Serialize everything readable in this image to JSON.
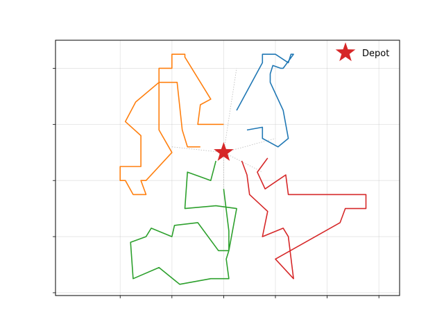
{
  "chart_data": {
    "type": "line",
    "title": "",
    "xlabel": "",
    "ylabel": "",
    "xlim": [
      -0.65,
      0.68
    ],
    "ylim": [
      -0.51,
      0.4
    ],
    "xticks": [
      -0.4,
      -0.2,
      0.0,
      0.2,
      0.4,
      0.6
    ],
    "yticks": [
      -0.5,
      -0.3,
      -0.1,
      0.1,
      0.3
    ],
    "grid": true,
    "tick_labels_visible": false,
    "legend": {
      "position": "top-right",
      "entries": [
        "Depot"
      ]
    },
    "depot": {
      "x": 0.0,
      "y": 0.0,
      "marker": "star",
      "color": "#d62728",
      "label": "Depot"
    },
    "spokes": [
      [
        0.05,
        0.3
      ],
      [
        0.2,
        0.05
      ],
      [
        0.15,
        -0.07
      ],
      [
        0.0,
        -0.14
      ],
      [
        -0.2,
        0.02
      ]
    ],
    "series": [
      {
        "color": "#1f77b4",
        "points": [
          [
            0.05,
            0.15
          ],
          [
            0.15,
            0.32
          ],
          [
            0.15,
            0.35
          ],
          [
            0.2,
            0.35
          ],
          [
            0.25,
            0.32
          ],
          [
            0.26,
            0.35
          ],
          [
            0.27,
            0.35
          ],
          [
            0.23,
            0.3
          ],
          [
            0.22,
            0.3
          ],
          [
            0.19,
            0.31
          ],
          [
            0.18,
            0.28
          ],
          [
            0.18,
            0.25
          ],
          [
            0.23,
            0.15
          ],
          [
            0.25,
            0.05
          ],
          [
            0.21,
            0.02
          ],
          [
            0.15,
            0.05
          ],
          [
            0.15,
            0.09
          ],
          [
            0.09,
            0.08
          ]
        ]
      },
      {
        "color": "#ff7f0e",
        "points": [
          [
            0.0,
            0.1
          ],
          [
            -0.1,
            0.1
          ],
          [
            -0.09,
            0.17
          ],
          [
            -0.05,
            0.19
          ],
          [
            -0.15,
            0.34
          ],
          [
            -0.15,
            0.35
          ],
          [
            -0.2,
            0.35
          ],
          [
            -0.2,
            0.3
          ],
          [
            -0.25,
            0.3
          ],
          [
            -0.25,
            0.25
          ],
          [
            -0.34,
            0.18
          ],
          [
            -0.38,
            0.11
          ],
          [
            -0.32,
            0.06
          ],
          [
            -0.32,
            -0.05
          ],
          [
            -0.4,
            -0.05
          ],
          [
            -0.4,
            -0.1
          ],
          [
            -0.38,
            -0.1
          ],
          [
            -0.35,
            -0.15
          ],
          [
            -0.3,
            -0.15
          ],
          [
            -0.32,
            -0.1
          ],
          [
            -0.3,
            -0.1
          ],
          [
            -0.2,
            0.0
          ],
          [
            -0.25,
            0.08
          ],
          [
            -0.25,
            0.25
          ],
          [
            -0.18,
            0.25
          ],
          [
            -0.16,
            0.08
          ],
          [
            -0.14,
            0.02
          ],
          [
            -0.09,
            0.02
          ]
        ]
      },
      {
        "color": "#2ca02c",
        "points": [
          [
            0.0,
            -0.13
          ],
          [
            0.02,
            -0.28
          ],
          [
            0.02,
            -0.35
          ],
          [
            0.01,
            -0.38
          ],
          [
            0.02,
            -0.45
          ],
          [
            -0.05,
            -0.45
          ],
          [
            -0.17,
            -0.47
          ],
          [
            -0.25,
            -0.41
          ],
          [
            -0.35,
            -0.45
          ],
          [
            -0.36,
            -0.32
          ],
          [
            -0.3,
            -0.3
          ],
          [
            -0.28,
            -0.27
          ],
          [
            -0.2,
            -0.3
          ],
          [
            -0.19,
            -0.26
          ],
          [
            -0.1,
            -0.25
          ],
          [
            -0.02,
            -0.35
          ],
          [
            0.02,
            -0.35
          ],
          [
            0.05,
            -0.2
          ],
          [
            -0.03,
            -0.19
          ],
          [
            -0.15,
            -0.2
          ],
          [
            -0.14,
            -0.07
          ],
          [
            -0.05,
            -0.1
          ],
          [
            -0.03,
            -0.03
          ]
        ]
      },
      {
        "color": "#d62728",
        "points": [
          [
            0.07,
            -0.03
          ],
          [
            0.09,
            -0.08
          ],
          [
            0.1,
            -0.15
          ],
          [
            0.17,
            -0.21
          ],
          [
            0.15,
            -0.3
          ],
          [
            0.23,
            -0.27
          ],
          [
            0.25,
            -0.3
          ],
          [
            0.27,
            -0.45
          ],
          [
            0.2,
            -0.38
          ],
          [
            0.45,
            -0.25
          ],
          [
            0.47,
            -0.2
          ],
          [
            0.55,
            -0.2
          ],
          [
            0.55,
            -0.15
          ],
          [
            0.25,
            -0.15
          ],
          [
            0.24,
            -0.08
          ],
          [
            0.16,
            -0.13
          ],
          [
            0.13,
            -0.07
          ],
          [
            0.17,
            -0.02
          ]
        ]
      }
    ]
  }
}
